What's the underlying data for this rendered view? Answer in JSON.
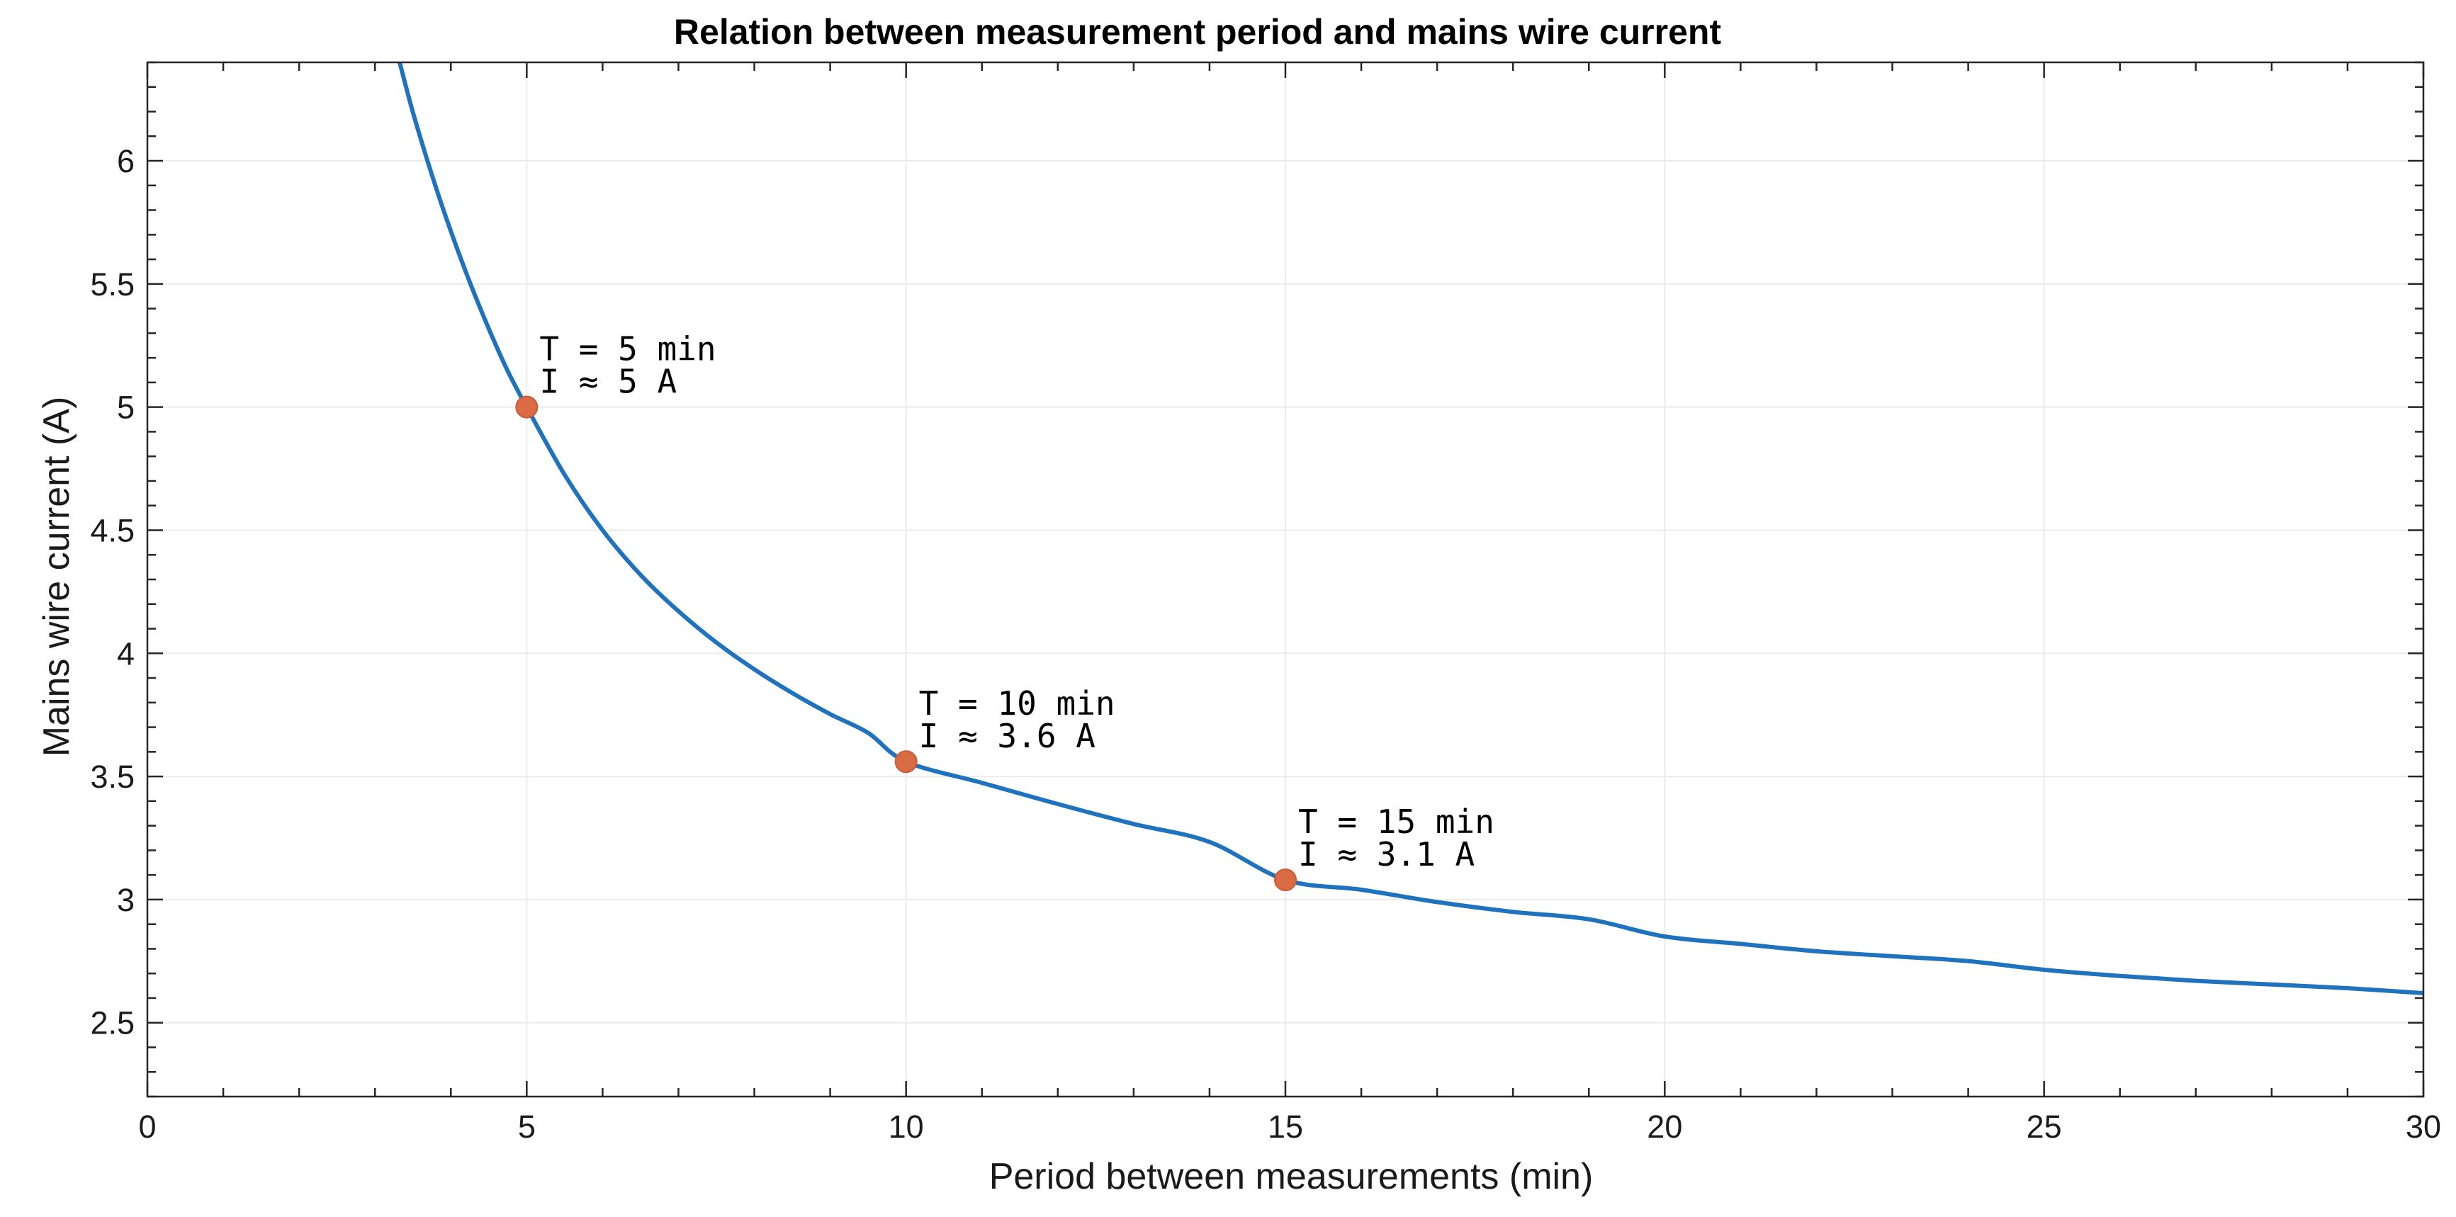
{
  "chart_data": {
    "type": "line",
    "title": "Relation between measurement period and mains wire current",
    "xlabel": "Period between measurements (min)",
    "ylabel": "Mains wire current (A)",
    "xlim": [
      0,
      30
    ],
    "ylim": [
      2.2,
      6.4
    ],
    "xticks": [
      0,
      5,
      10,
      15,
      20,
      25,
      30
    ],
    "xtick_labels": [
      "0",
      "5",
      "10",
      "15",
      "20",
      "25",
      "30"
    ],
    "yticks": [
      2.5,
      3,
      3.5,
      4,
      4.5,
      5,
      5.5,
      6
    ],
    "ytick_labels": [
      "2.5",
      "3",
      "3.5",
      "4",
      "4.5",
      "5",
      "5.5",
      "6"
    ],
    "x_minor_step": 1,
    "y_minor_step": 0.1,
    "grid": true,
    "legend": "none",
    "series": [
      {
        "name": "current",
        "color": "#1f72bd",
        "x": [
          3.3,
          3.5,
          3.75,
          4,
          4.25,
          4.5,
          4.75,
          5,
          5.5,
          6,
          6.5,
          7,
          7.5,
          8,
          8.5,
          9,
          9.5,
          10,
          11,
          12,
          13,
          14,
          15,
          16,
          17,
          18,
          19,
          20,
          21,
          22,
          23,
          24,
          25,
          26,
          27,
          28,
          29,
          30
        ],
        "values": [
          6.43,
          6.197,
          5.943,
          5.714,
          5.507,
          5.318,
          5.146,
          5.0,
          4.725,
          4.5,
          4.319,
          4.171,
          4.044,
          3.935,
          3.839,
          3.753,
          3.677,
          3.56,
          3.474,
          3.388,
          3.307,
          3.234,
          3.08,
          3.04,
          2.99,
          2.95,
          2.92,
          2.85,
          2.82,
          2.79,
          2.77,
          2.75,
          2.715,
          2.69,
          2.67,
          2.655,
          2.64,
          2.62
        ]
      }
    ],
    "markers": {
      "color": "#d96b45",
      "points": [
        {
          "x": 5,
          "y": 5.0,
          "label_line1": "T = 5 min",
          "label_line2": "I ≈ 5 A"
        },
        {
          "x": 10,
          "y": 3.56,
          "label_line1": "T = 10 min",
          "label_line2": "I ≈ 3.6 A"
        },
        {
          "x": 15,
          "y": 3.08,
          "label_line1": "T = 15 min",
          "label_line2": "I ≈ 3.1 A"
        }
      ]
    }
  }
}
